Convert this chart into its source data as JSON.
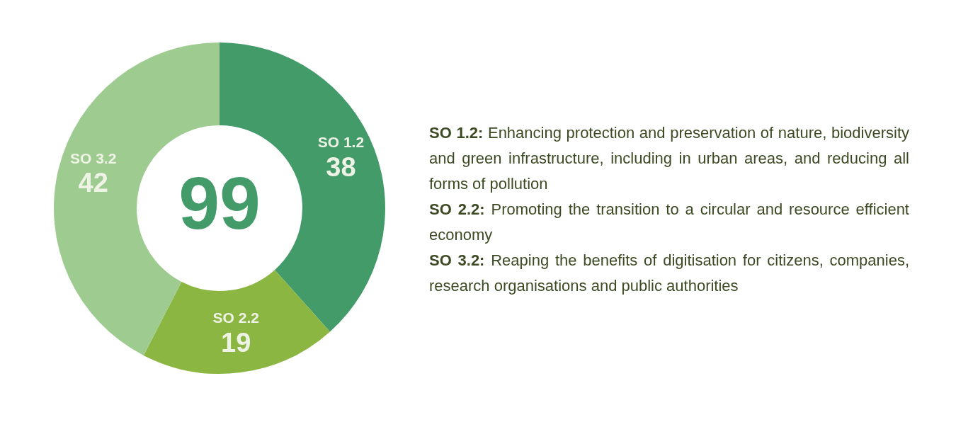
{
  "chart_data": {
    "type": "donut",
    "categories": [
      "SO 1.2",
      "SO 2.2",
      "SO 3.2"
    ],
    "values": [
      38,
      19,
      42
    ],
    "colors": [
      "#439b6a",
      "#8bb641",
      "#9ecb8f"
    ],
    "data_labels": true,
    "legend": false,
    "annotations": [
      "99",
      "SO 1.2: Enhancing protection and preservation of nature, biodiversity and green infrastructure, including in urban areas, and reducing all forms of pollution",
      "SO 2.2: Promoting the transition to a circular and resource efficient economy",
      "SO 3.2: Reaping the benefits of digitisation for citizens, companies, research organisations and public authorities"
    ]
  }
}
